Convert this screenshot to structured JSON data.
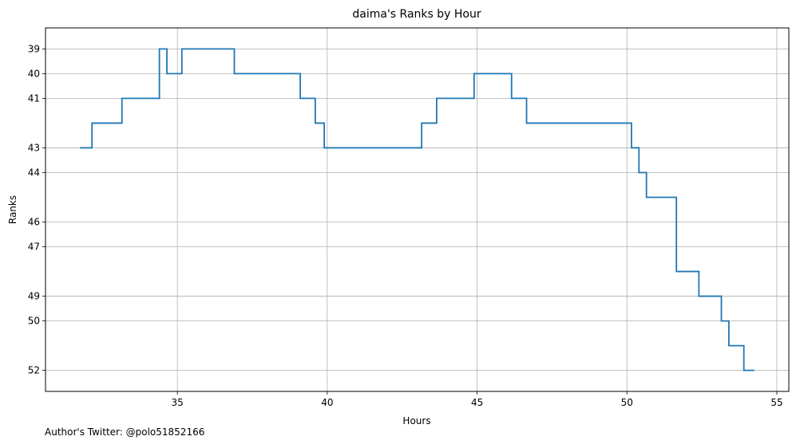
{
  "chart_data": {
    "type": "line",
    "step": "post",
    "title": "daima's Ranks by Hour",
    "xlabel": "Hours",
    "ylabel": "Ranks",
    "xlim": [
      30.6,
      55.4
    ],
    "ylim": [
      52.85,
      38.15
    ],
    "y_inverted": true,
    "grid": true,
    "xticks": [
      35,
      40,
      45,
      50,
      55
    ],
    "yticks": [
      39,
      40,
      41,
      43,
      44,
      46,
      47,
      49,
      50,
      52
    ],
    "line_color": "#1f77b4",
    "series": [
      {
        "x": [
          31.75,
          32.15,
          33.15,
          34.4,
          34.65,
          35.15,
          36.9,
          39.1,
          39.6,
          39.9,
          43.15,
          43.65,
          44.9,
          46.15,
          46.65,
          50.15,
          50.4,
          50.65,
          51.65,
          52.4,
          53.15,
          53.4,
          53.9,
          54.25
        ],
        "y": [
          43,
          42,
          41,
          39,
          40,
          39,
          40,
          41,
          42,
          43,
          42,
          41,
          40,
          41,
          42,
          43,
          44,
          45,
          48,
          49,
          50,
          51,
          52,
          52
        ]
      }
    ]
  },
  "footer": {
    "author_text": "Author's Twitter: @polo51852166"
  }
}
